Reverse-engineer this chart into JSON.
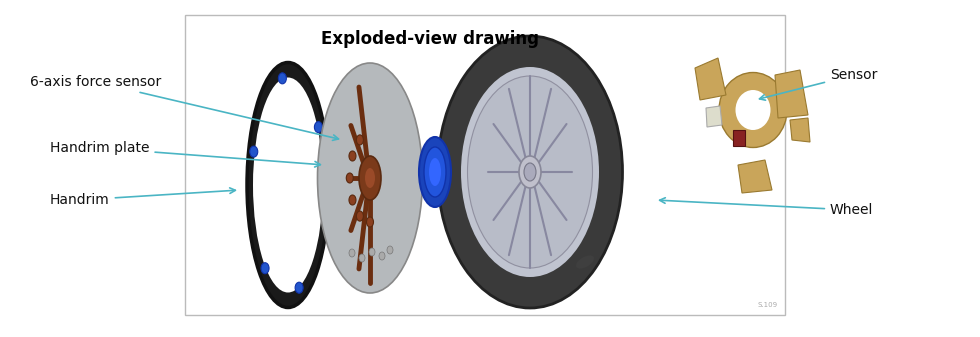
{
  "title": "Exploded-view drawing",
  "title_fontsize": 12,
  "title_fontweight": "bold",
  "bg_color": "#ffffff",
  "box_bg": "#ffffff",
  "labels": {
    "force_sensor": "6-axis force sensor",
    "handrim_plate": "Handrim plate",
    "handrim": "Handrim",
    "sensor": "Sensor",
    "wheel": "Wheel"
  },
  "arrow_color": "#4ab5c4",
  "label_fontsize": 10
}
